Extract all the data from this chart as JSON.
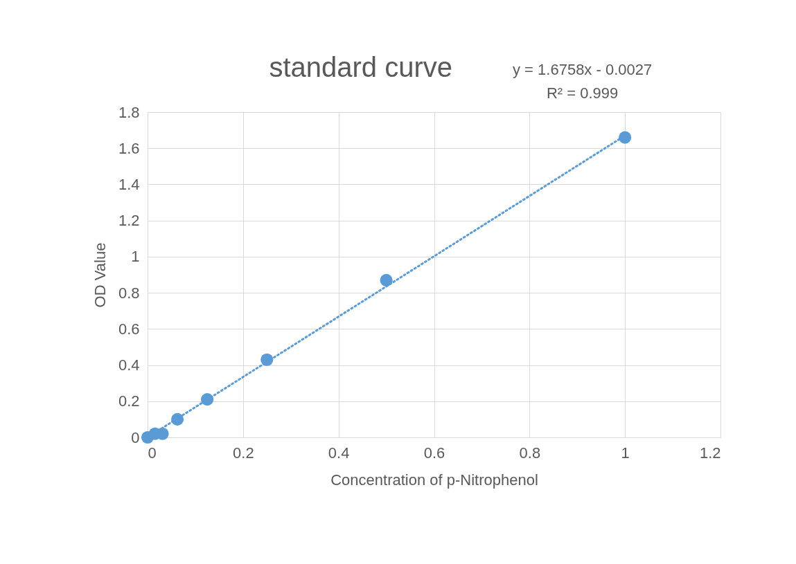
{
  "chart_data": {
    "type": "scatter",
    "title": "standard curve",
    "xlabel": "Concentration of  p-Nitrophenol",
    "ylabel": "OD Value",
    "annotations": [
      "y = 1.6758x - 0.0027",
      "R² = 0.999"
    ],
    "x": [
      0,
      0.0156,
      0.03125,
      0.0625,
      0.125,
      0.25,
      0.5,
      1
    ],
    "series": [
      {
        "color": "#5b9bd5",
        "marker": "circle",
        "values": [
          0,
          0.02,
          0.02,
          0.1,
          0.21,
          0.43,
          0.87,
          1.66
        ]
      },
      {
        "type": "line",
        "color": "#5b9bd5",
        "line_style": "dotted",
        "x": [
          0,
          1
        ],
        "values": [
          0,
          1.67
        ]
      }
    ],
    "xlim": [
      0,
      1.2
    ],
    "xticks": [
      0,
      0.2,
      0.4,
      0.6,
      0.8,
      1,
      1.2
    ],
    "ylim": [
      0,
      1.8
    ],
    "yticks": [
      0,
      0.2,
      0.4,
      0.6,
      0.8,
      1,
      1.2,
      1.4,
      1.6,
      1.8
    ],
    "grid": true
  }
}
